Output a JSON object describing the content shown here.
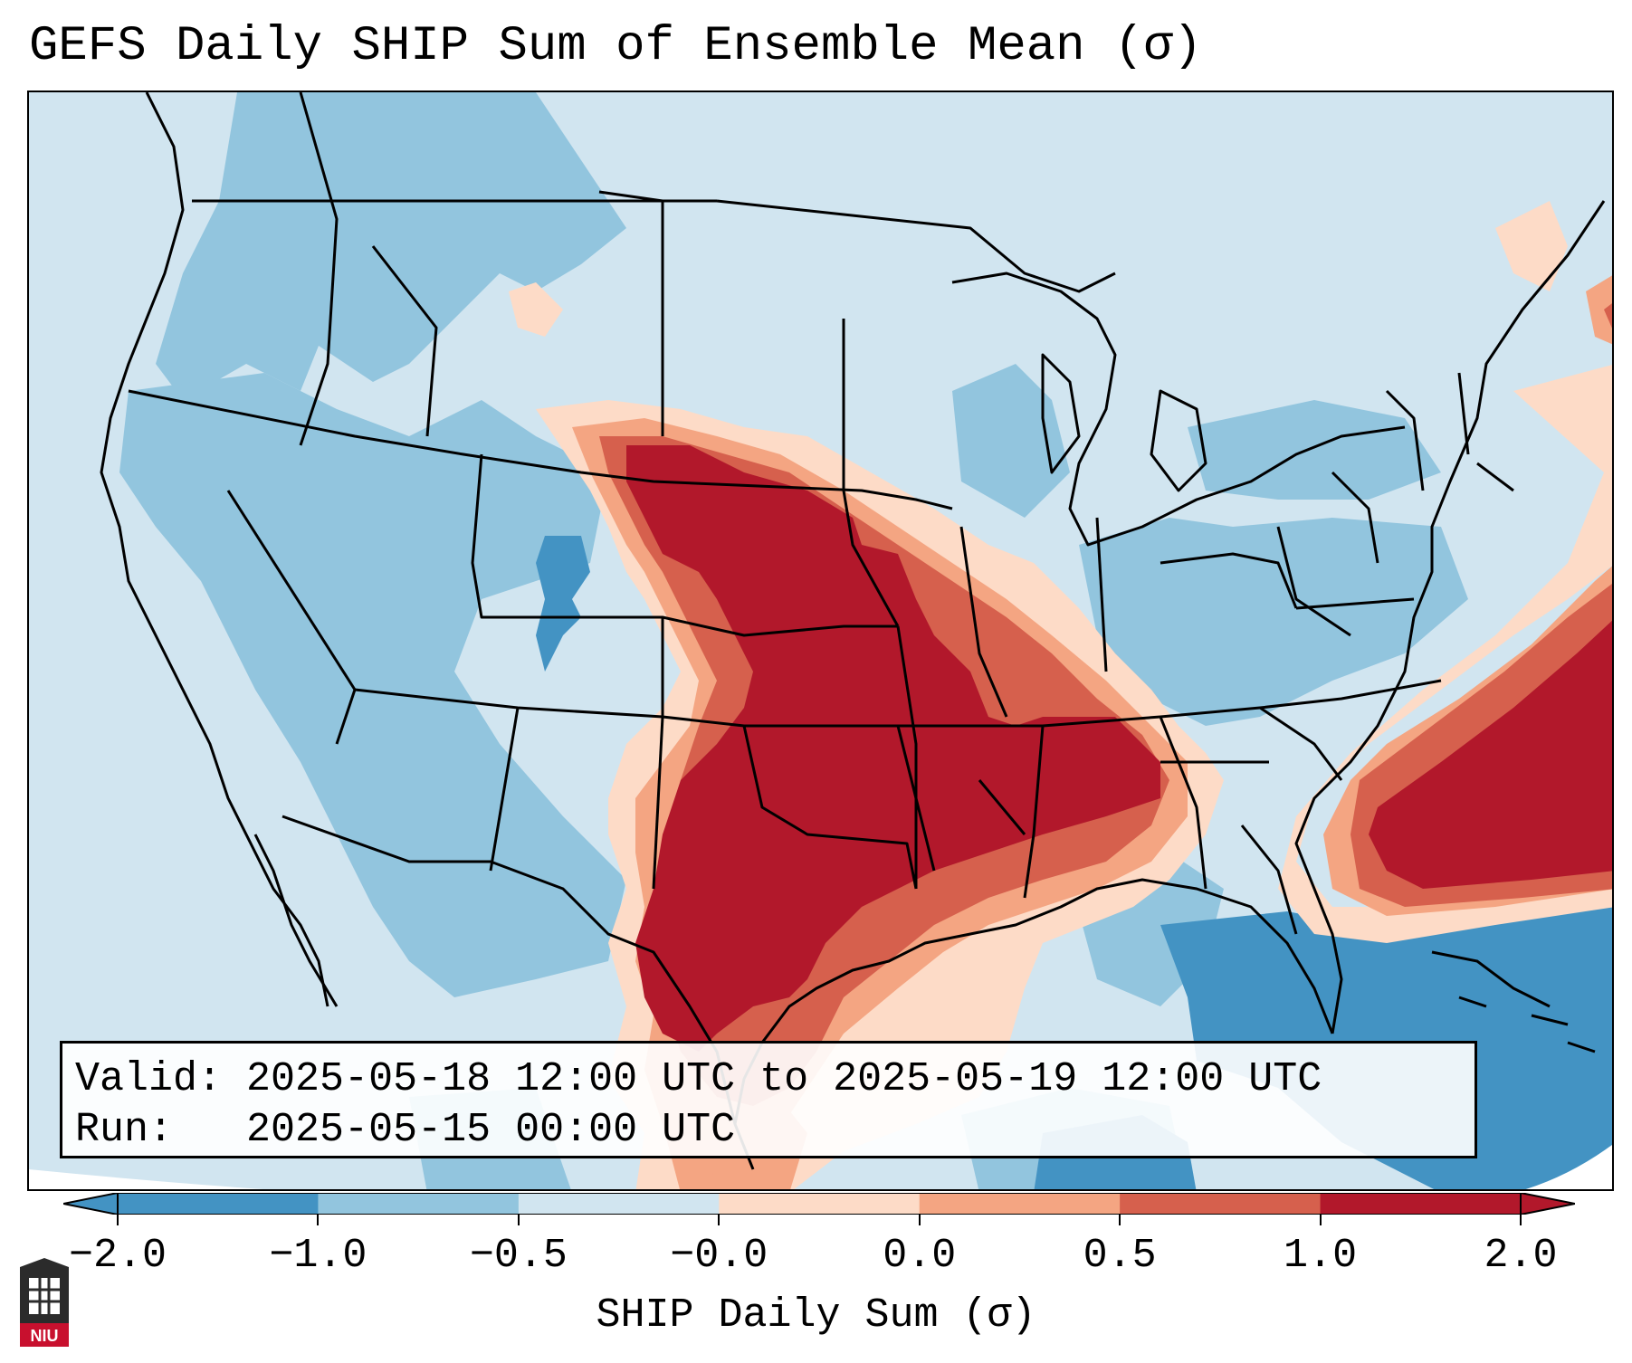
{
  "title": "GEFS Daily SHIP Sum of Ensemble Mean (σ)",
  "info": {
    "valid_label": "Valid:",
    "valid_value": "2025-05-18 12:00 UTC to 2025-05-19 12:00 UTC",
    "run_label": "Run:",
    "run_value": "2025-05-15 00:00 UTC"
  },
  "colorbar": {
    "label": "SHIP Daily Sum (σ)",
    "ticks": [
      "−2.0",
      "−1.0",
      "−0.5",
      "−0.0",
      "0.0",
      "0.5",
      "1.0",
      "2.0"
    ],
    "colors": [
      "#4393c3",
      "#92c5de",
      "#d1e5f0",
      "#fddbc7",
      "#f4a582",
      "#d6604d",
      "#b2182b"
    ],
    "under_color": "#4393c3",
    "over_color": "#b2182b"
  },
  "logo": {
    "text": "NIU",
    "icon": "niu-logo-icon"
  },
  "palette": {
    "strong_negative": "#4393c3",
    "negative": "#92c5de",
    "weak_negative": "#d1e5f0",
    "weak_positive": "#fddbc7",
    "positive": "#f4a582",
    "strong_positive": "#d6604d",
    "very_strong_positive": "#b2182b"
  }
}
